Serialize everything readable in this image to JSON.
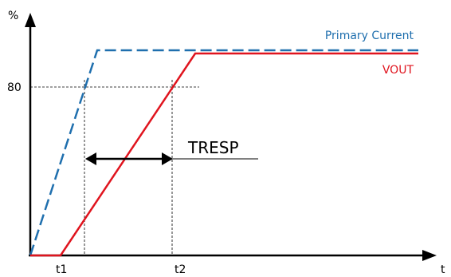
{
  "axes": {
    "y_label": "%",
    "x_label": "t",
    "y_tick_80": "80",
    "x_tick_t1": "t1",
    "x_tick_t2": "t2"
  },
  "legend": {
    "primary_current": "Primary Current",
    "vout": "VOUT"
  },
  "annotation": {
    "tresp": "TRESP"
  },
  "colors": {
    "primary_current": "#1f6fae",
    "vout": "#e0141e",
    "axis": "#000000",
    "guide": "#000000"
  }
}
